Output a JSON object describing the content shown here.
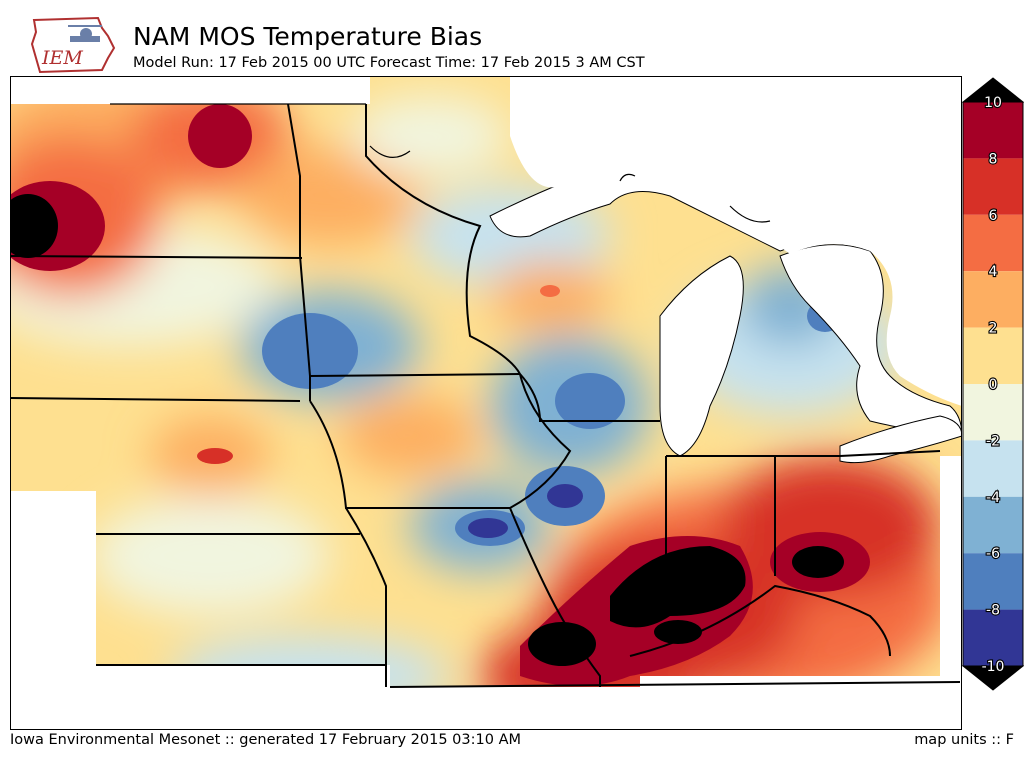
{
  "header": {
    "logo_text": "IEM",
    "title": "NAM MOS Temperature Bias",
    "subtitle": "Model Run: 17 Feb 2015 00 UTC Forecast Time: 17 Feb 2015 3 AM CST"
  },
  "footer": {
    "credit": "Iowa Environmental Mesonet :: generated 17 February 2015 03:10 AM",
    "units": "map units :: F"
  },
  "colorbar": {
    "levels": [
      "10",
      "8",
      "6",
      "4",
      "2",
      "0",
      "-2",
      "-4",
      "-6",
      "-8",
      "-10"
    ],
    "colors": [
      "#a50026",
      "#d73027",
      "#f46d43",
      "#fdae61",
      "#fee090",
      "#f1f5df",
      "#c6e2ef",
      "#7fb1d3",
      "#4f7fbe",
      "#313695"
    ],
    "over_color": "#000000",
    "under_color": "#000000"
  }
}
